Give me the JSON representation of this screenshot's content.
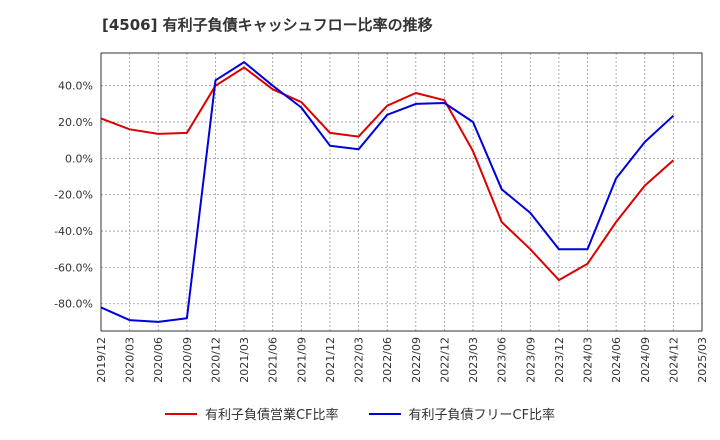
{
  "chart_data": {
    "type": "line",
    "title": "[4506]  有利子負債キャッシュフロー比率の推移",
    "xlabel": "",
    "ylabel": "",
    "ylim": [
      -95,
      58
    ],
    "yticks": [
      40,
      20,
      0,
      -20,
      -40,
      -60,
      -80
    ],
    "ytick_labels": [
      "40.0%",
      "20.0%",
      "0.0%",
      "-20.0%",
      "-40.0%",
      "-60.0%",
      "-80.0%"
    ],
    "categories": [
      "2019/12",
      "2020/03",
      "2020/06",
      "2020/09",
      "2020/12",
      "2021/03",
      "2021/06",
      "2021/09",
      "2021/12",
      "2022/03",
      "2022/06",
      "2022/09",
      "2022/12",
      "2023/03",
      "2023/06",
      "2023/09",
      "2023/12",
      "2024/03",
      "2024/06",
      "2024/09",
      "2024/12",
      "2025/03"
    ],
    "grid": true,
    "legend_position": "bottom",
    "series": [
      {
        "name": "有利子負債営業CF比率",
        "color": "#dd0000",
        "values": [
          22,
          16,
          13.5,
          14,
          40,
          50,
          38,
          31,
          14,
          12,
          29,
          36,
          32,
          4,
          -35,
          -50,
          -67,
          -58,
          -35,
          -15,
          -1,
          null
        ]
      },
      {
        "name": "有利子負債フリーCF比率",
        "color": "#0000dd",
        "values": [
          -82,
          -89,
          -90,
          -88,
          43,
          53,
          40,
          28,
          7,
          5,
          24,
          30,
          30.5,
          20,
          -17,
          -30,
          -50,
          -50,
          -11,
          9,
          23.5,
          null
        ]
      }
    ]
  }
}
